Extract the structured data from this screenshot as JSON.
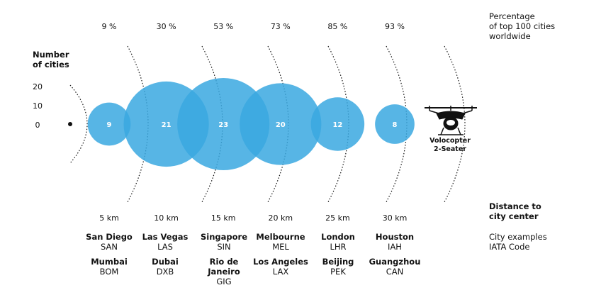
{
  "chart_data": {
    "type": "bubble",
    "title": "",
    "top_axis_label": [
      "Percentage",
      "of top 100 cities",
      "worldwide"
    ],
    "y_axis_label": [
      "Number",
      "of cities"
    ],
    "y_ticks": [
      20,
      10,
      0
    ],
    "x_axis_label": [
      "Distance to",
      "city center"
    ],
    "points": [
      {
        "distance": "5 km",
        "km": 5,
        "cities": 9,
        "percent": "9 %",
        "label": "9"
      },
      {
        "distance": "10 km",
        "km": 10,
        "cities": 21,
        "percent": "30 %",
        "label": "21"
      },
      {
        "distance": "15 km",
        "km": 15,
        "cities": 23,
        "percent": "53 %",
        "label": "23"
      },
      {
        "distance": "20 km",
        "km": 20,
        "cities": 20,
        "percent": "73 %",
        "label": "20"
      },
      {
        "distance": "25 km",
        "km": 25,
        "cities": 12,
        "percent": "85 %",
        "label": "12"
      },
      {
        "distance": "30 km",
        "km": 30,
        "cities": 8,
        "percent": "93 %",
        "label": "8"
      }
    ],
    "bubble_color": "#3aa8e0"
  },
  "city_legend": [
    "City examples",
    "IATA Code"
  ],
  "city_examples": [
    {
      "row1": {
        "name": "San Diego",
        "code": "SAN"
      },
      "row2": {
        "name": "Mumbai",
        "code": "BOM"
      }
    },
    {
      "row1": {
        "name": "Las Vegas",
        "code": "LAS"
      },
      "row2": {
        "name": "Dubai",
        "code": "DXB"
      }
    },
    {
      "row1": {
        "name": "Singapore",
        "code": "SIN"
      },
      "row2": {
        "name": "Rio de Janeiro",
        "code": "GIG"
      }
    },
    {
      "row1": {
        "name": "Melbourne",
        "code": "MEL"
      },
      "row2": {
        "name": "Los Angeles",
        "code": "LAX"
      }
    },
    {
      "row1": {
        "name": "London",
        "code": "LHR"
      },
      "row2": {
        "name": "Beijing",
        "code": "PEK"
      }
    },
    {
      "row1": {
        "name": "Houston",
        "code": "IAH"
      },
      "row2": {
        "name": "Guangzhou",
        "code": "CAN"
      }
    }
  ],
  "vehicle": {
    "line1": "Volocopter",
    "line2": "2-Seater",
    "icon": "drone-icon"
  }
}
